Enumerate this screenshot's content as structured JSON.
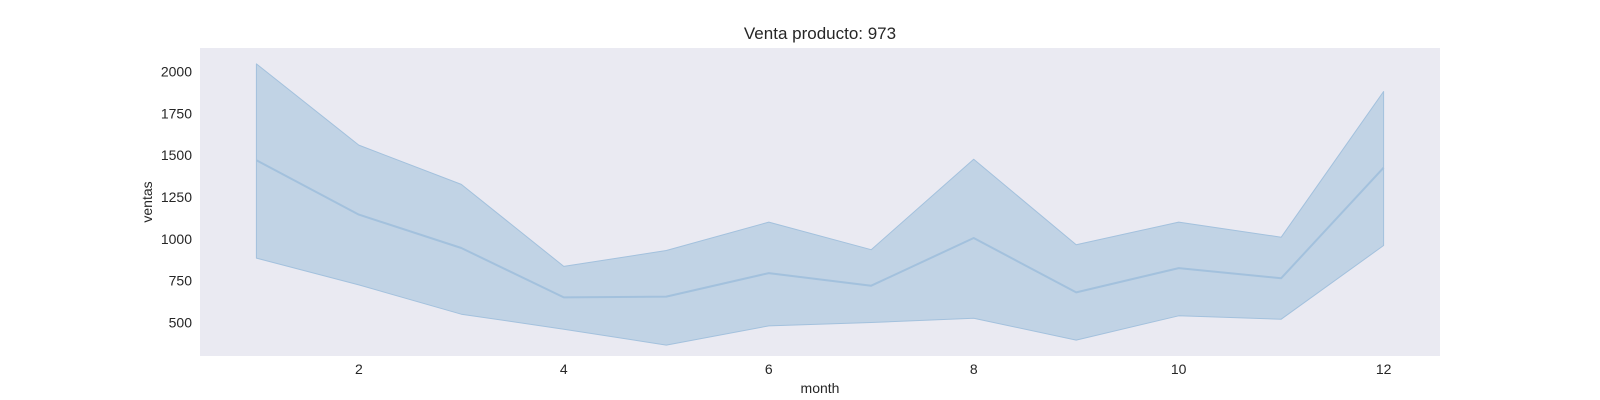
{
  "chart_data": {
    "type": "line",
    "title": "Venta producto: 973",
    "xlabel": "month",
    "ylabel": "ventas",
    "x": [
      1,
      2,
      3,
      4,
      5,
      6,
      7,
      8,
      9,
      10,
      11,
      12
    ],
    "series": [
      {
        "values": [
          1470,
          1145,
          945,
          650,
          655,
          795,
          720,
          1005,
          680,
          825,
          765,
          1425
        ],
        "ci_upper": [
          2045,
          1560,
          1325,
          835,
          930,
          1100,
          935,
          1475,
          965,
          1100,
          1010,
          1880
        ],
        "ci_lower": [
          885,
          725,
          550,
          460,
          365,
          480,
          500,
          525,
          395,
          540,
          520,
          960
        ]
      }
    ],
    "xticks": [
      2,
      4,
      6,
      8,
      10,
      12
    ],
    "yticks": [
      500,
      750,
      1000,
      1250,
      1500,
      1750,
      2000
    ],
    "xlim": [
      0.45,
      12.55
    ],
    "ylim": [
      300,
      2140
    ],
    "grid": false,
    "colors": {
      "plot_background": "#eaeaf2",
      "line": "#a3c1dd",
      "band": "#c1d3e5",
      "text": "#262626"
    }
  }
}
